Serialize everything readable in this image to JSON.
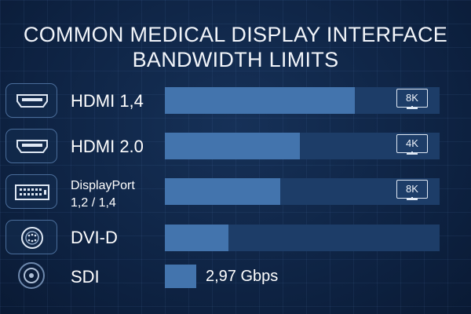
{
  "title_line1": "COMMON MEDICAL DISPLAY INTERFACE",
  "title_line2": "BANDWIDTH LIMITS",
  "chart_data": {
    "type": "bar",
    "orientation": "horizontal",
    "title": "COMMON MEDICAL DISPLAY INTERFACE BANDWIDTH LIMITS",
    "categories": [
      "HDMI 1,4",
      "HDMI 2.0",
      "DisplayPort 1,2 / 1,4",
      "DVI-D",
      "SDI"
    ],
    "values": [
      0.69,
      0.49,
      0.42,
      0.23,
      0.11
    ],
    "value_units": "relative bandwidth (fraction of track)",
    "resolution_badges": [
      "8K",
      "4K",
      "8K",
      "",
      ""
    ],
    "data_labels": [
      "",
      "",
      "",
      "",
      "2,97 Gbps"
    ],
    "legend": "none",
    "grid": false
  },
  "rows": [
    {
      "label": "HDMI 1,4",
      "icon": "hdmi-port-icon",
      "badge": "8K"
    },
    {
      "label": "HDMI 2.0",
      "icon": "hdmi-port-icon",
      "badge": "4K"
    },
    {
      "label_line1": "DisplayPort",
      "label_line2": "1,2 / 1,4",
      "icon": "dvi-port-icon",
      "badge": "8K"
    },
    {
      "label": "DVI-D",
      "icon": "vga-connector-icon"
    },
    {
      "label": "SDI",
      "icon": "bnc-connector-icon",
      "value_text": "2,97 Gbps"
    }
  ],
  "colors": {
    "background": "#0f2445",
    "bar_fill": "#4374ad",
    "bar_track": "#1d3d68",
    "icon_border": "#4a6d9a"
  }
}
